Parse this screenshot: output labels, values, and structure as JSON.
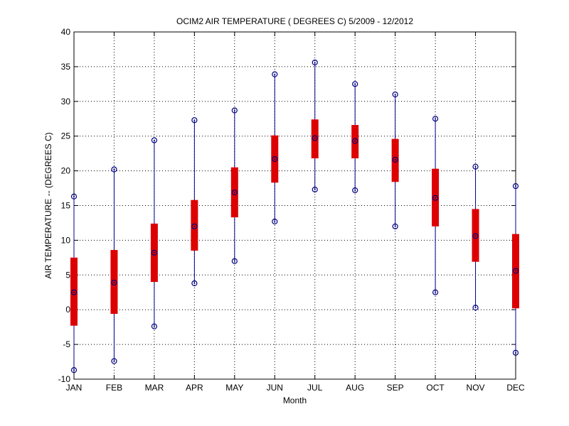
{
  "chart_data": {
    "type": "box",
    "title": "OCIM2  AIR TEMPERATURE ( DEGREES C) 5/2009 - 12/2012",
    "xlabel": "Month",
    "ylabel": "AIR TEMPERATURE -- (DEGREES C)",
    "ylim": [
      -10,
      40
    ],
    "yticks": [
      -10,
      -5,
      0,
      5,
      10,
      15,
      20,
      25,
      30,
      35,
      40
    ],
    "grid": true,
    "categories": [
      "JAN",
      "FEB",
      "MAR",
      "APR",
      "MAY",
      "JUN",
      "JUL",
      "AUG",
      "SEP",
      "OCT",
      "NOV",
      "DEC"
    ],
    "series": [
      {
        "min": [
          -8.7,
          -7.4,
          -2.4,
          3.8,
          7.0,
          12.7,
          17.3,
          17.2,
          12.0,
          2.5,
          0.3,
          -6.2
        ],
        "q1": [
          -2.3,
          -0.6,
          4.0,
          8.5,
          13.3,
          18.3,
          21.8,
          21.8,
          18.4,
          12.0,
          6.9,
          0.2
        ],
        "median": [
          2.5,
          3.9,
          8.2,
          12.0,
          16.9,
          21.7,
          24.7,
          24.3,
          21.6,
          16.1,
          10.6,
          5.6
        ],
        "q3": [
          7.5,
          8.6,
          12.4,
          15.8,
          20.5,
          25.1,
          27.4,
          26.6,
          24.6,
          20.3,
          14.5,
          10.9
        ],
        "max": [
          16.3,
          20.2,
          24.4,
          27.3,
          28.7,
          33.9,
          35.6,
          32.5,
          31.0,
          27.5,
          20.6,
          17.8
        ]
      }
    ],
    "colors": {
      "whisker": "#00008b",
      "box": "#dd0000",
      "marker": "#000080",
      "grid": "#000000",
      "axes": "#000000"
    }
  }
}
